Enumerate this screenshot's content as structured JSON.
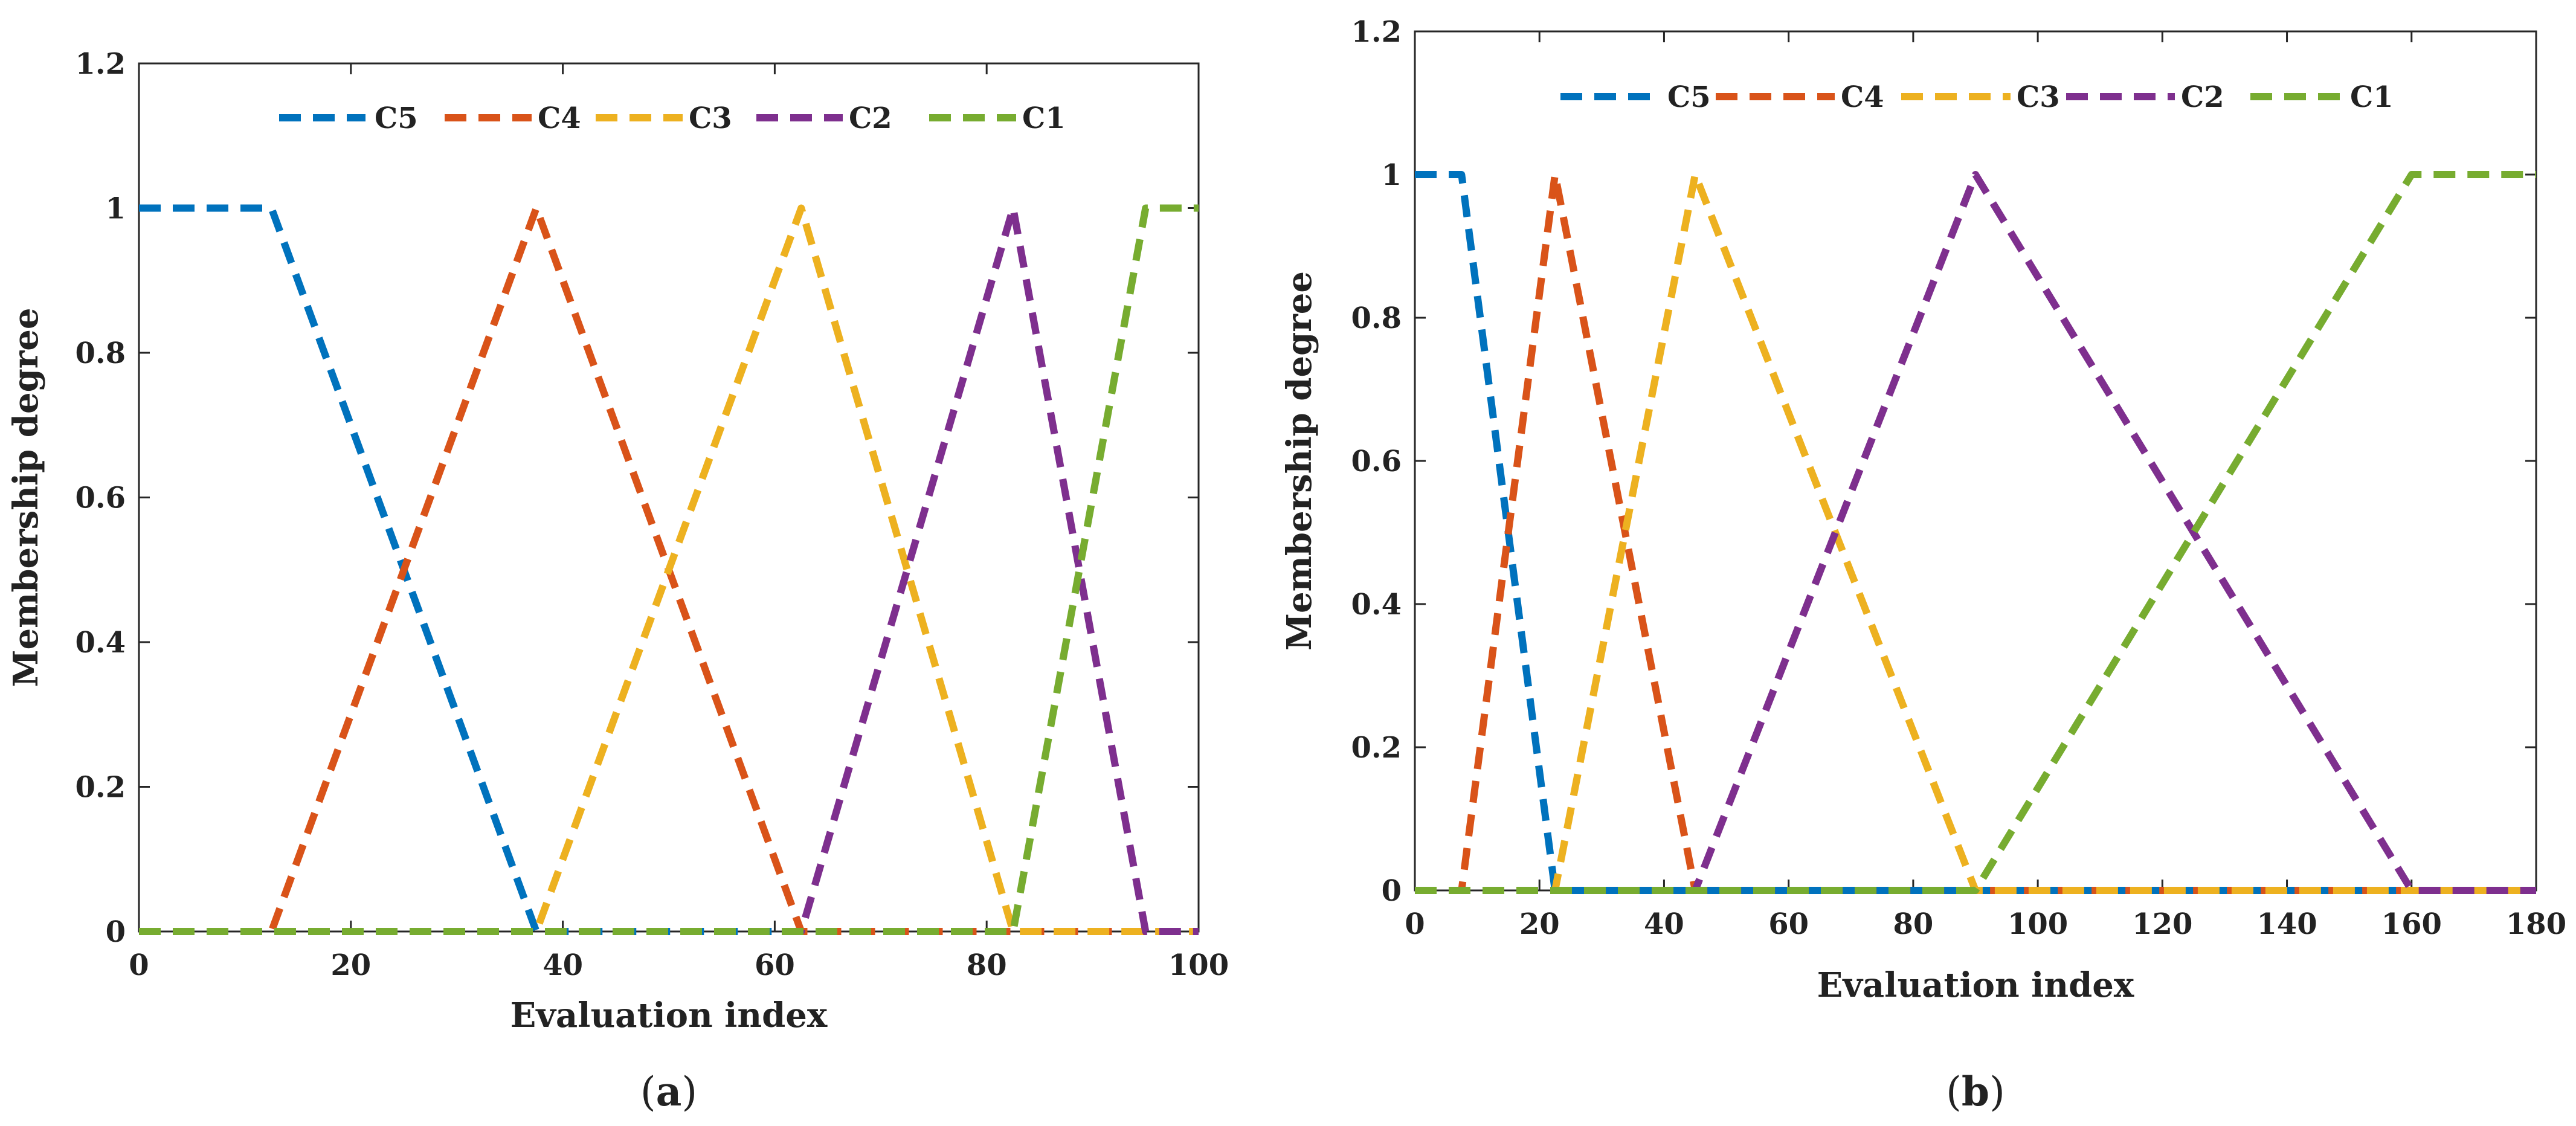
{
  "chart_data": [
    {
      "type": "line",
      "caption": "(a)",
      "caption_letter": "a",
      "xlabel": "Evaluation index",
      "ylabel": "Membership degree",
      "xlim": [
        0,
        100
      ],
      "ylim": [
        0,
        1.2
      ],
      "xticks": [
        0,
        20,
        40,
        60,
        80,
        100
      ],
      "yticks": [
        0,
        0.2,
        0.4,
        0.6,
        0.8,
        1,
        1.2
      ],
      "xtick_labels": [
        "0",
        "20",
        "40",
        "60",
        "80",
        "100"
      ],
      "ytick_labels": [
        "0",
        "0.2",
        "0.4",
        "0.6",
        "0.8",
        "1",
        "1.2"
      ],
      "legend_location": "top",
      "grid": false,
      "series": [
        {
          "name": "C5",
          "color": "#0072BD",
          "x": [
            0,
            12.5,
            37.5,
            100
          ],
          "y": [
            1,
            1,
            0,
            0
          ]
        },
        {
          "name": "C4",
          "color": "#D95319",
          "x": [
            0,
            12.5,
            37.5,
            62.5,
            100
          ],
          "y": [
            0,
            0,
            1,
            0,
            0
          ]
        },
        {
          "name": "C3",
          "color": "#EDB120",
          "x": [
            0,
            37.5,
            62.5,
            82.5,
            100
          ],
          "y": [
            0,
            0,
            1,
            0,
            0
          ]
        },
        {
          "name": "C2",
          "color": "#7E2F8E",
          "x": [
            0,
            62.5,
            82.5,
            95,
            100
          ],
          "y": [
            0,
            0,
            1,
            0,
            0
          ]
        },
        {
          "name": "C1",
          "color": "#77AC30",
          "x": [
            0,
            82.5,
            95,
            100
          ],
          "y": [
            0,
            0,
            1,
            1
          ]
        }
      ]
    },
    {
      "type": "line",
      "caption": "(b)",
      "caption_letter": "b",
      "xlabel": "Evaluation index",
      "ylabel": "Membership degree",
      "xlim": [
        0,
        180
      ],
      "ylim": [
        0,
        1.2
      ],
      "xticks": [
        0,
        20,
        40,
        60,
        80,
        100,
        120,
        140,
        160,
        180
      ],
      "yticks": [
        0,
        0.2,
        0.4,
        0.6,
        0.8,
        1,
        1.2
      ],
      "xtick_labels": [
        "0",
        "20",
        "40",
        "60",
        "80",
        "100",
        "120",
        "140",
        "160",
        "180"
      ],
      "ytick_labels": [
        "0",
        "0.2",
        "0.4",
        "0.6",
        "0.8",
        "1",
        "1.2"
      ],
      "legend_location": "top",
      "grid": false,
      "series": [
        {
          "name": "C5",
          "color": "#0072BD",
          "x": [
            0,
            7.5,
            22.5,
            180
          ],
          "y": [
            1,
            1,
            0,
            0
          ]
        },
        {
          "name": "C4",
          "color": "#D95319",
          "x": [
            0,
            7.5,
            22.5,
            45,
            180
          ],
          "y": [
            0,
            0,
            1,
            0,
            0
          ]
        },
        {
          "name": "C3",
          "color": "#EDB120",
          "x": [
            0,
            22.5,
            45,
            90,
            180
          ],
          "y": [
            0,
            0,
            1,
            0,
            0
          ]
        },
        {
          "name": "C2",
          "color": "#7E2F8E",
          "x": [
            0,
            45,
            90,
            160,
            180
          ],
          "y": [
            0,
            0,
            1,
            0,
            0
          ]
        },
        {
          "name": "C1",
          "color": "#77AC30",
          "x": [
            0,
            90,
            160,
            180
          ],
          "y": [
            0,
            0,
            1,
            1
          ]
        }
      ]
    }
  ]
}
